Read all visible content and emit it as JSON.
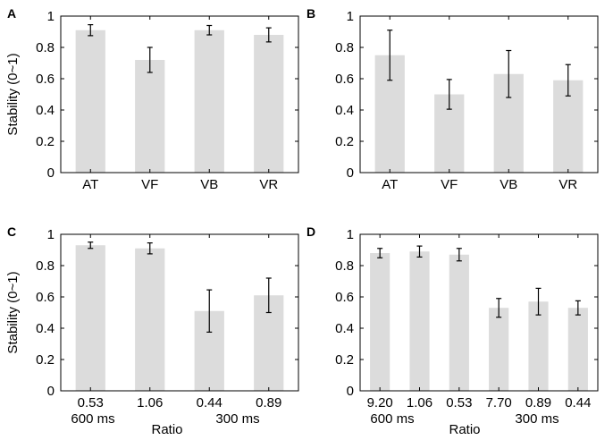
{
  "chart_data": [
    {
      "panel": "A",
      "type": "bar",
      "categories": [
        "AT",
        "VF",
        "VB",
        "VR"
      ],
      "values": [
        0.91,
        0.72,
        0.91,
        0.88
      ],
      "errors": [
        0.035,
        0.08,
        0.03,
        0.045
      ],
      "ylabel": "Stability (0~1)",
      "xlabel": "",
      "group_labels": [],
      "ylim": [
        0,
        1
      ],
      "yticks": [
        0,
        0.2,
        0.4,
        0.6,
        0.8,
        1
      ],
      "ytick_labels": [
        "0",
        "0.2",
        "0.4",
        "0.6",
        "0.8",
        "1"
      ],
      "bar_color": "#dcdcdc"
    },
    {
      "panel": "B",
      "type": "bar",
      "categories": [
        "AT",
        "VF",
        "VB",
        "VR"
      ],
      "values": [
        0.75,
        0.5,
        0.63,
        0.59
      ],
      "errors": [
        0.16,
        0.095,
        0.15,
        0.1
      ],
      "ylabel": "",
      "xlabel": "",
      "group_labels": [],
      "ylim": [
        0,
        1
      ],
      "yticks": [
        0,
        0.2,
        0.4,
        0.6,
        0.8,
        1
      ],
      "ytick_labels": [
        "0",
        "0.2",
        "0.4",
        "0.6",
        "0.8",
        "1"
      ],
      "bar_color": "#dcdcdc"
    },
    {
      "panel": "C",
      "type": "bar",
      "categories": [
        "0.53",
        "1.06",
        "0.44",
        "0.89"
      ],
      "values": [
        0.93,
        0.91,
        0.51,
        0.61
      ],
      "errors": [
        0.02,
        0.035,
        0.135,
        0.11
      ],
      "ylabel": "Stability (0~1)",
      "xlabel": "Ratio",
      "group_labels": [
        "600 ms",
        "300 ms"
      ],
      "ylim": [
        0,
        1
      ],
      "yticks": [
        0,
        0.2,
        0.4,
        0.6,
        0.8,
        1
      ],
      "ytick_labels": [
        "0",
        "0.2",
        "0.4",
        "0.6",
        "0.8",
        "1"
      ],
      "bar_color": "#dcdcdc"
    },
    {
      "panel": "D",
      "type": "bar",
      "categories": [
        "9.20",
        "1.06",
        "0.53",
        "7.70",
        "0.89",
        "0.44"
      ],
      "values": [
        0.88,
        0.89,
        0.87,
        0.53,
        0.57,
        0.53
      ],
      "errors": [
        0.03,
        0.035,
        0.04,
        0.06,
        0.085,
        0.045
      ],
      "ylabel": "",
      "xlabel": "Ratio",
      "group_labels": [
        "600 ms",
        "300 ms"
      ],
      "ylim": [
        0,
        1
      ],
      "yticks": [
        0,
        0.2,
        0.4,
        0.6,
        0.8,
        1
      ],
      "ytick_labels": [
        "0",
        "0.2",
        "0.4",
        "0.6",
        "0.8",
        "1"
      ],
      "bar_color": "#dcdcdc"
    }
  ]
}
